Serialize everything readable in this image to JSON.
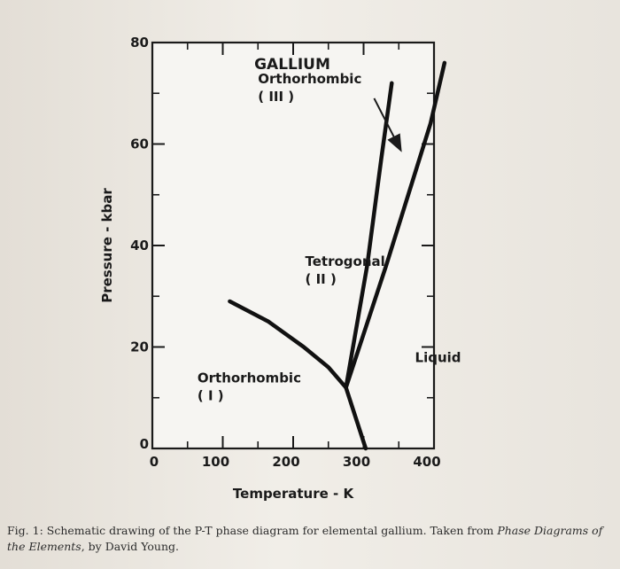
{
  "chart_data": {
    "type": "line",
    "title": "GALLIUM",
    "xlabel": "Temperature - K",
    "ylabel": "Pressure - kbar",
    "xlim": [
      0,
      400
    ],
    "ylim": [
      0,
      80
    ],
    "x_ticks": [
      0,
      100,
      200,
      300,
      400
    ],
    "x_tick_labels": [
      "0",
      "100",
      "200",
      "300",
      "400"
    ],
    "y_ticks": [
      0,
      20,
      40,
      60,
      80
    ],
    "y_tick_labels": [
      "0",
      "20",
      "40",
      "60",
      "80"
    ],
    "grid": false,
    "phase_boundaries": [
      {
        "points": [
          [
            303,
            0
          ],
          [
            275,
            12
          ]
        ]
      },
      {
        "points": [
          [
            110,
            29
          ],
          [
            165,
            25
          ],
          [
            215,
            20
          ],
          [
            250,
            16
          ],
          [
            275,
            12
          ]
        ]
      },
      {
        "points": [
          [
            275,
            12
          ],
          [
            305,
            36
          ],
          [
            325,
            57
          ],
          [
            340,
            72
          ]
        ]
      },
      {
        "points": [
          [
            275,
            12
          ],
          [
            332,
            36
          ],
          [
            395,
            64
          ],
          [
            415,
            76
          ]
        ]
      }
    ],
    "annotations": [
      {
        "text": "Orthorhombic",
        "x": 150,
        "y": 72
      },
      {
        "text": "( III )",
        "x": 150,
        "y": 68.5
      },
      {
        "text": "Tetrogonal",
        "x": 217,
        "y": 36
      },
      {
        "text": "( II )",
        "x": 217,
        "y": 32.5
      },
      {
        "text": "Orthorhombic",
        "x": 64,
        "y": 13
      },
      {
        "text": "( I )",
        "x": 64,
        "y": 9.5
      },
      {
        "text": "Liquid",
        "x": 373,
        "y": 17
      }
    ],
    "arrow": {
      "from": [
        315,
        69
      ],
      "to": [
        352,
        59
      ]
    }
  },
  "caption": {
    "prefix": "Fig. 1: Schematic drawing of the P-T phase diagram for elemental gallium. Taken from ",
    "source_title": "Phase Diagrams of the Elements",
    "suffix": ", by David Young."
  }
}
